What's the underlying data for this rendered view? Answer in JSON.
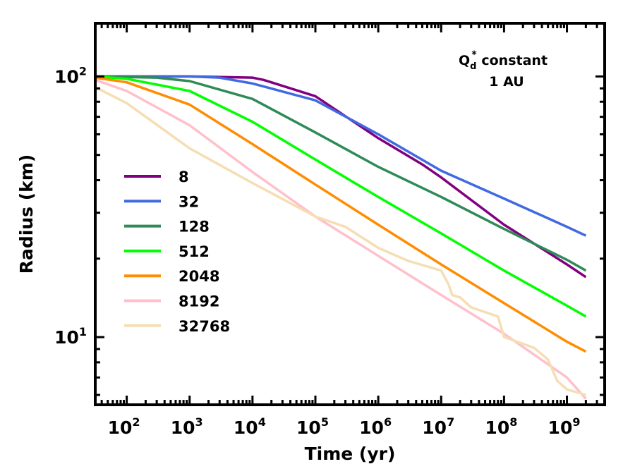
{
  "chart_data": {
    "type": "line",
    "title": "",
    "xlabel": "Time (yr)",
    "ylabel": "Radius (km)",
    "xscale": "log",
    "yscale": "log",
    "xlim": [
      31.6,
      3980000000.0
    ],
    "ylim": [
      5.5,
      160
    ],
    "x_ticks": [
      {
        "exp": 2,
        "label_base": "10",
        "label_exp": "2"
      },
      {
        "exp": 3,
        "label_base": "10",
        "label_exp": "3"
      },
      {
        "exp": 4,
        "label_base": "10",
        "label_exp": "4"
      },
      {
        "exp": 5,
        "label_base": "10",
        "label_exp": "5"
      },
      {
        "exp": 6,
        "label_base": "10",
        "label_exp": "6"
      },
      {
        "exp": 7,
        "label_base": "10",
        "label_exp": "7"
      },
      {
        "exp": 8,
        "label_base": "10",
        "label_exp": "8"
      },
      {
        "exp": 9,
        "label_base": "10",
        "label_exp": "9"
      }
    ],
    "y_ticks": [
      {
        "value": 10,
        "label_base": "10",
        "label_exp": "1"
      },
      {
        "value": 100,
        "label_base": "10",
        "label_exp": "2"
      }
    ],
    "annotation": {
      "line1_base": "Q",
      "line1_sub": "d",
      "line1_sup": "*",
      "line1_rest": " constant",
      "line2": "1 AU"
    },
    "legend_position": "center-left",
    "series": [
      {
        "name": "8",
        "color": "#800080",
        "x": [
          31.6,
          1000,
          10000,
          15000,
          100000,
          1000000,
          5000000,
          10000000,
          100000000,
          1000000000,
          2000000000
        ],
        "y": [
          100,
          100,
          99,
          97,
          84,
          58,
          46,
          41,
          27,
          19,
          17
        ]
      },
      {
        "name": "32",
        "color": "#4169E1",
        "x": [
          31.6,
          1000,
          3000,
          10000,
          100000,
          1000000,
          10000000,
          100000000,
          1000000000,
          2000000000
        ],
        "y": [
          100,
          100,
          99,
          94,
          81,
          60,
          43.5,
          34,
          26.5,
          24.5
        ]
      },
      {
        "name": "128",
        "color": "#2E8B57",
        "x": [
          31.6,
          300,
          1000,
          10000,
          100000,
          1000000,
          10000000,
          100000000,
          1000000000,
          2000000000
        ],
        "y": [
          100,
          99,
          96,
          82,
          61,
          45,
          34.5,
          26,
          19.8,
          18
        ]
      },
      {
        "name": "512",
        "color": "#00FF00",
        "x": [
          31.6,
          100,
          1000,
          10000,
          100000,
          1000000,
          10000000,
          100000000,
          1000000000,
          2000000000
        ],
        "y": [
          100,
          98,
          88,
          67,
          48,
          34.5,
          25,
          18,
          13.2,
          12
        ]
      },
      {
        "name": "2048",
        "color": "#FF8C00",
        "x": [
          31.6,
          100,
          1000,
          10000,
          100000,
          1000000,
          10000000,
          100000000,
          1000000000,
          2000000000
        ],
        "y": [
          99,
          95,
          78,
          55,
          38.5,
          27,
          19,
          13.5,
          9.6,
          8.8
        ]
      },
      {
        "name": "8192",
        "color": "#FFC0CB",
        "x": [
          31.6,
          100,
          1000,
          10000,
          100000,
          1000000,
          10000000,
          100000000,
          1000000000,
          2000000000
        ],
        "y": [
          97,
          88,
          65,
          43,
          29,
          20.5,
          14.5,
          10.3,
          7,
          5.8
        ]
      },
      {
        "name": "32768",
        "color": "#F5DEB3",
        "x": [
          31.6,
          100,
          1000,
          10000,
          100000,
          300000,
          1000000,
          3000000,
          10000000,
          13000000,
          15000000,
          20000000,
          30000000,
          80000000,
          100000000,
          300000000,
          500000000,
          700000000,
          1000000000,
          2000000000
        ],
        "y": [
          91,
          79,
          53,
          39,
          29,
          26.5,
          22,
          19.6,
          18,
          16,
          14.5,
          14.2,
          13,
          12,
          10,
          9.1,
          8.2,
          6.8,
          6.3,
          6
        ]
      }
    ]
  }
}
